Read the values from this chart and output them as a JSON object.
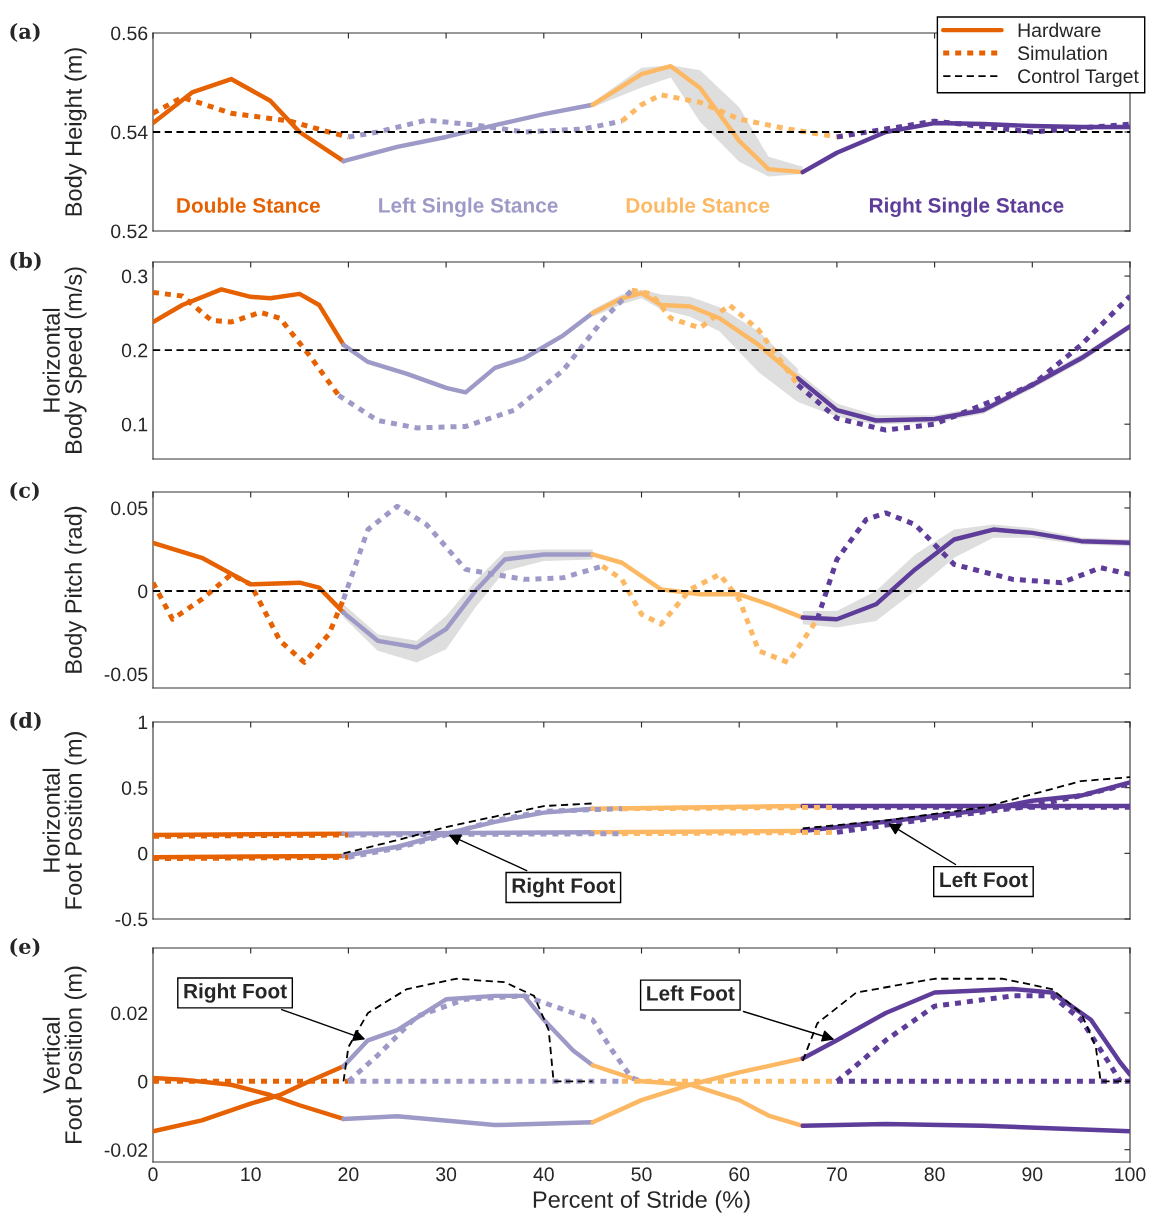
{
  "chart_data": [
    {
      "type": "line",
      "title": "(a)",
      "ylabel": "Body Height (m)",
      "xlim": [
        0,
        100
      ],
      "xticks": [
        0,
        10,
        20,
        30,
        40,
        50,
        60,
        70,
        80,
        90,
        100
      ],
      "ylim": [
        0.52,
        0.56
      ],
      "yticks": [
        0.52,
        0.54,
        0.56
      ],
      "tick_labels": "y",
      "legend": "top right",
      "grid": false,
      "annotations": [
        "Double Stance",
        "Left Single Stance",
        "Double Stance",
        "Right Single Stance"
      ],
      "series": [
        {
          "name": "Hardware",
          "color": "#e66101",
          "line_style": "solid",
          "x": [
            0,
            4,
            8,
            12,
            15,
            19.5
          ],
          "values": [
            0.5418,
            0.548,
            0.5507,
            0.5463,
            0.54,
            0.5341
          ]
        },
        {
          "color": "#9e9ac8",
          "line_style": "solid",
          "x": [
            19.5,
            25,
            30,
            35,
            40,
            45
          ],
          "values": [
            0.5341,
            0.537,
            0.539,
            0.5414,
            0.5436,
            0.5455
          ]
        },
        {
          "color": "#fdb863",
          "line_style": "solid",
          "x": [
            45,
            50,
            53,
            56,
            60,
            63,
            66.5
          ],
          "values": [
            0.5455,
            0.5517,
            0.5533,
            0.5489,
            0.5382,
            0.5325,
            0.5319
          ],
          "lower": [
            0.545,
            0.549,
            0.551,
            0.542,
            0.534,
            0.531,
            0.5315
          ],
          "upper": [
            0.546,
            0.553,
            0.5535,
            0.5525,
            0.545,
            0.535,
            0.533
          ]
        },
        {
          "color": "#5e3c99",
          "line_style": "solid",
          "x": [
            66.5,
            70,
            75,
            80,
            85,
            90,
            95,
            100
          ],
          "values": [
            0.5319,
            0.5358,
            0.54,
            0.5418,
            0.5416,
            0.5412,
            0.541,
            0.541
          ]
        },
        {
          "name": "Simulation",
          "color": "#e66101",
          "line_style": "dotted",
          "x": [
            0,
            3,
            8,
            14,
            18,
            20
          ],
          "values": [
            0.5438,
            0.547,
            0.5438,
            0.5422,
            0.54,
            0.539
          ]
        },
        {
          "color": "#9e9ac8",
          "line_style": "dotted",
          "x": [
            20,
            23,
            28,
            33,
            38,
            44,
            48
          ],
          "values": [
            0.539,
            0.54,
            0.5424,
            0.5414,
            0.54,
            0.5406,
            0.5422
          ]
        },
        {
          "color": "#fdb863",
          "line_style": "dotted",
          "x": [
            48,
            50,
            52,
            56,
            60,
            65,
            70
          ],
          "values": [
            0.5422,
            0.5455,
            0.5475,
            0.546,
            0.5426,
            0.5406,
            0.539
          ]
        },
        {
          "color": "#5e3c99",
          "line_style": "dotted",
          "x": [
            70,
            75,
            80,
            90,
            100
          ],
          "values": [
            0.539,
            0.5406,
            0.5422,
            0.54,
            0.5416
          ]
        },
        {
          "name": "Control Target",
          "color": "#000000",
          "line_style": "dashed",
          "x": [
            0,
            100
          ],
          "values": [
            0.54,
            0.54
          ]
        }
      ]
    },
    {
      "type": "line",
      "title": "(b)",
      "ylabel": "Horizontal\nBody Speed (m/s)",
      "xlim": [
        0,
        100
      ],
      "xticks": [
        0,
        10,
        20,
        30,
        40,
        50,
        60,
        70,
        80,
        90,
        100
      ],
      "ylim": [
        0.053,
        0.319
      ],
      "yticks": [
        0.1,
        0.2,
        0.3
      ],
      "tick_labels": "y",
      "grid": false,
      "series": [
        {
          "color": "#e66101",
          "line_style": "solid",
          "x": [
            0,
            3,
            7,
            10,
            12,
            15,
            17,
            19.5
          ],
          "values": [
            0.238,
            0.261,
            0.282,
            0.272,
            0.27,
            0.276,
            0.261,
            0.207
          ]
        },
        {
          "color": "#9e9ac8",
          "line_style": "solid",
          "x": [
            19.5,
            22,
            26,
            30,
            32,
            35,
            38,
            42,
            45
          ],
          "values": [
            0.207,
            0.184,
            0.168,
            0.149,
            0.143,
            0.176,
            0.189,
            0.22,
            0.25
          ]
        },
        {
          "color": "#fdb863",
          "line_style": "solid",
          "x": [
            45,
            48,
            50,
            52,
            55,
            58,
            62,
            66
          ],
          "values": [
            0.25,
            0.27,
            0.277,
            0.261,
            0.259,
            0.243,
            0.207,
            0.162
          ],
          "lower": [
            0.245,
            0.262,
            0.27,
            0.255,
            0.245,
            0.225,
            0.17,
            0.13
          ],
          "upper": [
            0.255,
            0.275,
            0.282,
            0.275,
            0.272,
            0.258,
            0.225,
            0.175
          ]
        },
        {
          "color": "#5e3c99",
          "line_style": "solid",
          "x": [
            66,
            70,
            74,
            80,
            85,
            90,
            95,
            100
          ],
          "values": [
            0.162,
            0.119,
            0.105,
            0.107,
            0.119,
            0.153,
            0.189,
            0.232
          ],
          "lower": [
            0.13,
            0.11,
            0.1,
            0.102,
            0.114,
            0.148,
            0.184,
            0.228
          ],
          "upper": [
            0.17,
            0.128,
            0.112,
            0.112,
            0.124,
            0.158,
            0.194,
            0.236
          ]
        },
        {
          "color": "#e66101",
          "line_style": "dotted",
          "x": [
            0,
            3,
            6,
            8,
            11,
            13,
            16,
            19
          ],
          "values": [
            0.278,
            0.273,
            0.24,
            0.238,
            0.251,
            0.243,
            0.193,
            0.139
          ]
        },
        {
          "color": "#9e9ac8",
          "line_style": "dotted",
          "x": [
            19,
            23,
            27,
            32,
            37,
            42,
            46,
            49
          ],
          "values": [
            0.139,
            0.105,
            0.095,
            0.097,
            0.119,
            0.173,
            0.24,
            0.281
          ]
        },
        {
          "color": "#fdb863",
          "line_style": "dotted",
          "x": [
            49,
            51,
            53,
            56,
            59,
            62,
            66
          ],
          "values": [
            0.281,
            0.276,
            0.243,
            0.23,
            0.261,
            0.227,
            0.153
          ]
        },
        {
          "color": "#5e3c99",
          "line_style": "dotted",
          "x": [
            66,
            70,
            75,
            80,
            90,
            95,
            100
          ],
          "values": [
            0.153,
            0.108,
            0.092,
            0.1,
            0.153,
            0.207,
            0.273
          ]
        },
        {
          "color": "#000000",
          "line_style": "dashed",
          "x": [
            0,
            100
          ],
          "values": [
            0.2,
            0.2
          ]
        }
      ]
    },
    {
      "type": "line",
      "title": "(c)",
      "ylabel": "Body Pitch (rad)",
      "xlim": [
        0,
        100
      ],
      "xticks": [
        0,
        10,
        20,
        30,
        40,
        50,
        60,
        70,
        80,
        90,
        100
      ],
      "ylim": [
        -0.0584,
        0.0596
      ],
      "yticks": [
        -0.05,
        0,
        0.05
      ],
      "tick_labels": "y",
      "grid": false,
      "series": [
        {
          "color": "#e66101",
          "line_style": "solid",
          "x": [
            0,
            5,
            10,
            15,
            17,
            19.5
          ],
          "values": [
            0.029,
            0.02,
            0.004,
            0.005,
            0.002,
            -0.013
          ]
        },
        {
          "color": "#9e9ac8",
          "line_style": "solid",
          "x": [
            19.5,
            23,
            27,
            30,
            33,
            36,
            40,
            45
          ],
          "values": [
            -0.013,
            -0.03,
            -0.034,
            -0.023,
            0,
            0.019,
            0.022,
            0.022
          ],
          "lower": [
            -0.016,
            -0.036,
            -0.043,
            -0.035,
            -0.01,
            0.012,
            0.018,
            0.019
          ],
          "upper": [
            -0.008,
            -0.026,
            -0.03,
            -0.015,
            0.006,
            0.024,
            0.025,
            0.025
          ]
        },
        {
          "color": "#fdb863",
          "line_style": "solid",
          "x": [
            45,
            48,
            52,
            56,
            60,
            63,
            66.5
          ],
          "values": [
            0.022,
            0.017,
            0.001,
            -0.002,
            -0.002,
            -0.008,
            -0.016
          ]
        },
        {
          "color": "#5e3c99",
          "line_style": "solid",
          "x": [
            66.5,
            70,
            74,
            78,
            82,
            86,
            90,
            95,
            100
          ],
          "values": [
            -0.016,
            -0.017,
            -0.008,
            0.013,
            0.031,
            0.037,
            0.035,
            0.03,
            0.029
          ],
          "lower": [
            -0.02,
            -0.022,
            -0.018,
            0.0,
            0.02,
            0.032,
            0.032,
            0.028,
            0.027
          ],
          "upper": [
            -0.012,
            -0.012,
            0.0,
            0.022,
            0.037,
            0.04,
            0.038,
            0.032,
            0.031
          ]
        },
        {
          "color": "#e66101",
          "line_style": "dotted",
          "x": [
            0,
            2,
            5,
            8,
            10,
            13,
            15.5,
            18,
            19.5
          ],
          "values": [
            0.005,
            -0.017,
            -0.005,
            0.01,
            0.004,
            -0.03,
            -0.043,
            -0.026,
            -0.005
          ]
        },
        {
          "color": "#9e9ac8",
          "line_style": "dotted",
          "x": [
            19.5,
            22,
            25,
            28,
            32,
            38,
            42,
            46
          ],
          "values": [
            -0.005,
            0.037,
            0.051,
            0.04,
            0.013,
            0.007,
            0.008,
            0.015
          ]
        },
        {
          "color": "#fdb863",
          "line_style": "dotted",
          "x": [
            46,
            48,
            50,
            52,
            55,
            58,
            60,
            62,
            65,
            68
          ],
          "values": [
            0.015,
            0.007,
            -0.014,
            -0.02,
            0.001,
            0.01,
            -0.005,
            -0.036,
            -0.043,
            -0.017
          ]
        },
        {
          "color": "#5e3c99",
          "line_style": "dotted",
          "x": [
            68,
            70,
            73,
            75,
            78,
            82,
            88,
            93,
            97,
            100
          ],
          "values": [
            -0.017,
            0.019,
            0.043,
            0.047,
            0.04,
            0.016,
            0.007,
            0.005,
            0.014,
            0.01
          ]
        },
        {
          "color": "#000000",
          "line_style": "dashed",
          "x": [
            0,
            100
          ],
          "values": [
            0,
            0
          ]
        }
      ]
    },
    {
      "type": "line",
      "title": "(d)",
      "ylabel": "Horizontal\nFoot Position (m)",
      "xlim": [
        0,
        100
      ],
      "xticks": [
        0,
        10,
        20,
        30,
        40,
        50,
        60,
        70,
        80,
        90,
        100
      ],
      "ylim": [
        -0.5,
        1
      ],
      "yticks": [
        -0.5,
        0,
        0.5,
        1
      ],
      "tick_labels": "y",
      "grid": false,
      "annotations": [
        {
          "text": "Right Foot",
          "x": 30,
          "y": 0.15
        },
        {
          "text": "Left Foot",
          "x": 75,
          "y": 0.24
        }
      ],
      "series": [
        {
          "color": "#e66101",
          "line_style": "solid",
          "x": [
            0,
            19.5
          ],
          "values": [
            -0.03,
            -0.02
          ]
        },
        {
          "color": "#e66101",
          "line_style": "solid",
          "x": [
            0,
            19.5
          ],
          "values": [
            0.14,
            0.15
          ]
        },
        {
          "color": "#9e9ac8",
          "line_style": "solid",
          "x": [
            19.5,
            25,
            30,
            35,
            40,
            45
          ],
          "values": [
            -0.02,
            0.05,
            0.15,
            0.24,
            0.31,
            0.34
          ]
        },
        {
          "color": "#9e9ac8",
          "line_style": "solid",
          "x": [
            19.5,
            45
          ],
          "values": [
            0.15,
            0.16
          ]
        },
        {
          "color": "#fdb863",
          "line_style": "solid",
          "x": [
            45,
            66.5
          ],
          "values": [
            0.34,
            0.36
          ]
        },
        {
          "color": "#fdb863",
          "line_style": "solid",
          "x": [
            45,
            66.5
          ],
          "values": [
            0.16,
            0.17
          ]
        },
        {
          "color": "#5e3c99",
          "line_style": "solid",
          "x": [
            66.5,
            100
          ],
          "values": [
            0.36,
            0.36
          ]
        },
        {
          "color": "#5e3c99",
          "line_style": "solid",
          "x": [
            66.5,
            75,
            85,
            90,
            95,
            100
          ],
          "values": [
            0.17,
            0.24,
            0.33,
            0.4,
            0.44,
            0.54
          ]
        },
        {
          "color": "#e66101",
          "line_style": "dotted",
          "x": [
            0,
            20
          ],
          "values": [
            -0.04,
            -0.03
          ]
        },
        {
          "color": "#e66101",
          "line_style": "dotted",
          "x": [
            0,
            20
          ],
          "values": [
            0.13,
            0.14
          ]
        },
        {
          "color": "#9e9ac8",
          "line_style": "dotted",
          "x": [
            20,
            25,
            30,
            35,
            40,
            48
          ],
          "values": [
            -0.03,
            0.04,
            0.14,
            0.25,
            0.32,
            0.34
          ]
        },
        {
          "color": "#9e9ac8",
          "line_style": "dotted",
          "x": [
            20,
            48
          ],
          "values": [
            0.14,
            0.15
          ]
        },
        {
          "color": "#fdb863",
          "line_style": "dotted",
          "x": [
            48,
            70
          ],
          "values": [
            0.34,
            0.35
          ]
        },
        {
          "color": "#fdb863",
          "line_style": "dotted",
          "x": [
            48,
            70
          ],
          "values": [
            0.15,
            0.16
          ]
        },
        {
          "color": "#5e3c99",
          "line_style": "dotted",
          "x": [
            70,
            100
          ],
          "values": [
            0.35,
            0.35
          ]
        },
        {
          "color": "#5e3c99",
          "line_style": "dotted",
          "x": [
            70,
            80,
            90,
            95,
            100
          ],
          "values": [
            0.16,
            0.27,
            0.36,
            0.44,
            0.53
          ]
        },
        {
          "color": "#000000",
          "line_style": "dashed",
          "x": [
            19.5,
            25,
            30,
            35,
            40,
            45
          ],
          "values": [
            0,
            0.1,
            0.2,
            0.28,
            0.36,
            0.38
          ]
        },
        {
          "color": "#000000",
          "line_style": "dashed",
          "x": [
            66.5,
            75,
            85,
            95,
            100
          ],
          "values": [
            0.19,
            0.25,
            0.35,
            0.55,
            0.58
          ]
        }
      ]
    },
    {
      "type": "line",
      "title": "(e)",
      "ylabel": "Vertical\nFoot Position (m)",
      "xlabel": "Percent of Stride (%)",
      "xlim": [
        0,
        100
      ],
      "xticks": [
        0,
        10,
        20,
        30,
        40,
        50,
        60,
        70,
        80,
        90,
        100
      ],
      "ylim": [
        -0.0236,
        0.039
      ],
      "yticks": [
        -0.02,
        0,
        0.02
      ],
      "grid": false,
      "annotations": [
        {
          "text": "Right Foot",
          "x": 22,
          "y": 0.012
        },
        {
          "text": "Left Foot",
          "x": 70,
          "y": 0.012
        }
      ],
      "series": [
        {
          "color": "#e66101",
          "line_style": "solid",
          "x": [
            0,
            5,
            10,
            13,
            16,
            19.5
          ],
          "values": [
            -0.0146,
            -0.0114,
            -0.0065,
            -0.004,
            0.0,
            0.0044
          ]
        },
        {
          "color": "#e66101",
          "line_style": "solid",
          "x": [
            0,
            3,
            8,
            12,
            15,
            19.5
          ],
          "values": [
            0.001,
            0.0005,
            -0.001,
            -0.004,
            -0.007,
            -0.011
          ]
        },
        {
          "color": "#9e9ac8",
          "line_style": "solid",
          "x": [
            19.5,
            22,
            25,
            30,
            35,
            38,
            40,
            43,
            45
          ],
          "values": [
            0.0044,
            0.012,
            0.015,
            0.024,
            0.025,
            0.025,
            0.018,
            0.009,
            0.0047
          ]
        },
        {
          "color": "#9e9ac8",
          "line_style": "solid",
          "x": [
            19.5,
            25,
            35,
            45
          ],
          "values": [
            -0.011,
            -0.0102,
            -0.0128,
            -0.012
          ]
        },
        {
          "color": "#fdb863",
          "line_style": "solid",
          "x": [
            45,
            50,
            55,
            60,
            63,
            66.5
          ],
          "values": [
            0.0047,
            0.0,
            -0.001,
            -0.0055,
            -0.01,
            -0.013
          ]
        },
        {
          "color": "#fdb863",
          "line_style": "solid",
          "x": [
            45,
            50,
            55,
            60,
            66.5
          ],
          "values": [
            -0.012,
            -0.0055,
            -0.001,
            0.0026,
            0.0067
          ]
        },
        {
          "color": "#5e3c99",
          "line_style": "solid",
          "x": [
            66.5,
            75,
            85,
            100
          ],
          "values": [
            -0.013,
            -0.0125,
            -0.013,
            -0.0146
          ]
        },
        {
          "color": "#5e3c99",
          "line_style": "solid",
          "x": [
            66.5,
            70,
            75,
            80,
            88,
            92,
            96,
            99,
            100
          ],
          "values": [
            0.0067,
            0.012,
            0.02,
            0.026,
            0.027,
            0.026,
            0.018,
            0.0055,
            0.002
          ]
        },
        {
          "color": "#e66101",
          "line_style": "dotted",
          "x": [
            0,
            20
          ],
          "values": [
            0,
            0
          ]
        },
        {
          "color": "#9e9ac8",
          "line_style": "dotted",
          "x": [
            20,
            23,
            27,
            32,
            38,
            45,
            47,
            49,
            50
          ],
          "values": [
            0,
            0.0076,
            0.019,
            0.024,
            0.025,
            0.018,
            0.009,
            0.001,
            0
          ]
        },
        {
          "color": "#9e9ac8",
          "line_style": "dotted",
          "x": [
            20,
            48
          ],
          "values": [
            0,
            0
          ]
        },
        {
          "color": "#fdb863",
          "line_style": "dotted",
          "x": [
            48,
            70
          ],
          "values": [
            0,
            0
          ]
        },
        {
          "color": "#5e3c99",
          "line_style": "dotted",
          "x": [
            70,
            72,
            75,
            80,
            88,
            92,
            95,
            98,
            99
          ],
          "values": [
            0,
            0.0047,
            0.012,
            0.022,
            0.025,
            0.025,
            0.018,
            0.0047,
            0
          ]
        },
        {
          "color": "#5e3c99",
          "line_style": "dotted",
          "x": [
            70,
            100
          ],
          "values": [
            0,
            0
          ]
        },
        {
          "color": "#000000",
          "line_style": "dashed",
          "x": [
            19.5,
            20,
            22,
            26,
            31,
            36,
            39,
            40.5,
            41,
            45
          ],
          "values": [
            0,
            0.01,
            0.02,
            0.027,
            0.03,
            0.029,
            0.025,
            0.015,
            0,
            0
          ]
        },
        {
          "color": "#000000",
          "line_style": "dashed",
          "x": [
            66.5,
            68,
            72,
            80,
            87,
            92,
            95,
            96.5,
            97,
            100
          ],
          "values": [
            0.006,
            0.017,
            0.026,
            0.03,
            0.03,
            0.027,
            0.02,
            0.01,
            0,
            0
          ]
        }
      ]
    }
  ]
}
